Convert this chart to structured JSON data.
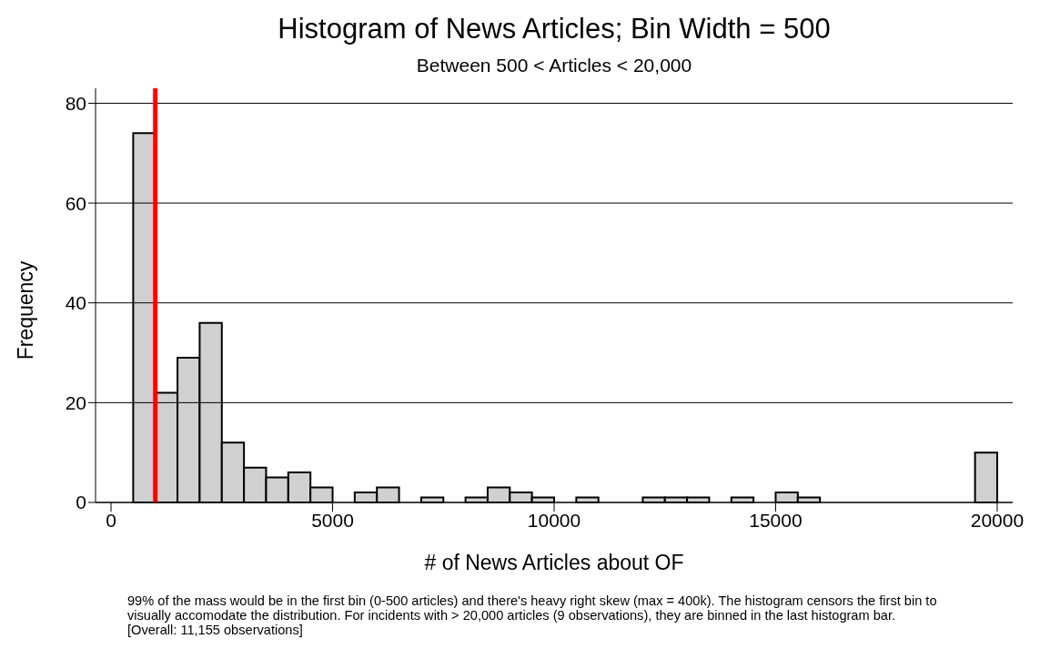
{
  "chart_data": {
    "type": "histogram",
    "title": "Histogram of News Articles; Bin Width = 500",
    "subtitle": "Between 500 < Articles < 20,000",
    "xlabel": "# of News Articles about OF",
    "ylabel": "Frequency",
    "bins": [
      500,
      1000,
      1500,
      2000,
      2500,
      3000,
      3500,
      4000,
      4500,
      5000,
      5500,
      6000,
      6500,
      7000,
      7500,
      8000,
      8500,
      9000,
      9500,
      10000,
      10500,
      11000,
      11500,
      12000,
      12500,
      13000,
      13500,
      14000,
      14500,
      15000,
      15500,
      16000,
      16500,
      17000,
      17500,
      18000,
      18500,
      19000,
      19500,
      20000
    ],
    "values": [
      74,
      22,
      29,
      36,
      12,
      7,
      5,
      6,
      3,
      0,
      2,
      3,
      0,
      1,
      0,
      1,
      3,
      2,
      1,
      0,
      1,
      0,
      0,
      1,
      1,
      1,
      0,
      1,
      0,
      2,
      1,
      0,
      0,
      0,
      0,
      0,
      0,
      0,
      10
    ],
    "color": "#d0d0d0",
    "xlim": [
      -350,
      20350
    ],
    "xticks": [
      0,
      5000,
      10000,
      15000,
      20000
    ],
    "ylim": [
      0,
      83
    ],
    "yticks": [
      0,
      20,
      40,
      60,
      80
    ],
    "grid": "y",
    "ref_lines": [
      {
        "axis": "x",
        "value": 1000,
        "color": "#ff0000"
      }
    ],
    "annotations": [
      "99% of the mass would be in the first bin (0-500 articles) and there's heavy right skew (max = 400k). The histogram censors the first bin to visually accomodate the distribution. For incidents with > 20,000 articles (9 observations), they are binned in the last histogram bar.  [Overall: 11,155 observations]"
    ]
  }
}
